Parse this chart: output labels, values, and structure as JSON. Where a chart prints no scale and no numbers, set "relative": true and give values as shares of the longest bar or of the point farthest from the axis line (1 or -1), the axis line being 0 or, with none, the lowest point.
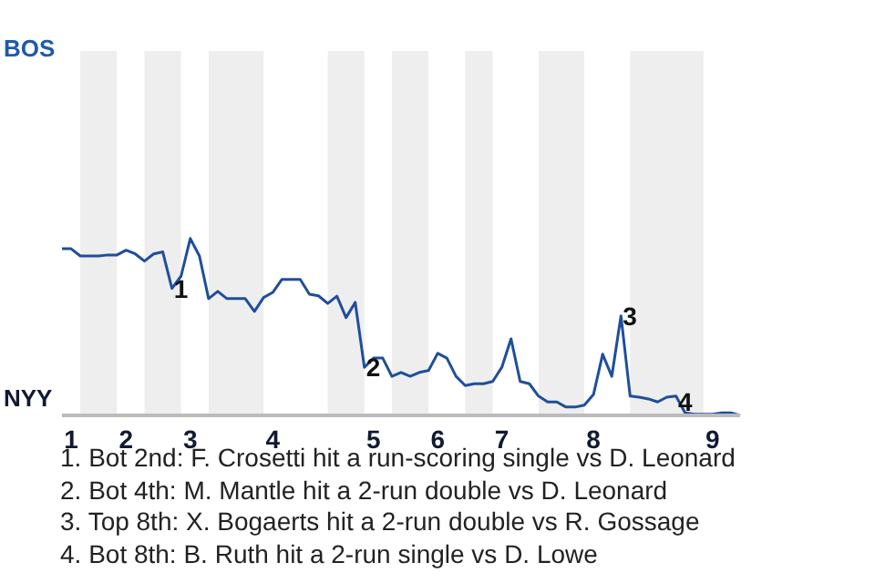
{
  "chart_data": {
    "type": "line",
    "relative": true,
    "categories": [
      null,
      "1",
      null,
      null,
      null,
      null,
      null,
      "2",
      null,
      null,
      null,
      null,
      null,
      null,
      "3",
      null,
      null,
      null,
      null,
      null,
      null,
      null,
      null,
      "4",
      null,
      null,
      null,
      null,
      null,
      null,
      null,
      null,
      null,
      null,
      "5",
      null,
      null,
      null,
      null,
      null,
      null,
      "6",
      null,
      null,
      null,
      null,
      null,
      null,
      "7",
      null,
      null,
      null,
      null,
      null,
      null,
      null,
      null,
      null,
      "8",
      null,
      null,
      null,
      null,
      null,
      null,
      null,
      null,
      null,
      null,
      null,
      null,
      "9",
      null,
      null,
      null
    ],
    "series": [
      {
        "color": "#1f4e9c",
        "values": [
          0.942,
          0.942,
          0.901,
          0.901,
          0.901,
          0.907,
          0.907,
          0.934,
          0.913,
          0.872,
          0.913,
          0.924,
          0.718,
          0.788,
          1,
          0.901,
          0.66,
          0.701,
          0.66,
          0.66,
          0.66,
          0.588,
          0.666,
          0.695,
          0.769,
          0.769,
          0.769,
          0.685,
          0.676,
          0.633,
          0.674,
          0.553,
          0.639,
          0.272,
          0.324,
          0.324,
          0.221,
          0.243,
          0.221,
          0.243,
          0.254,
          0.351,
          0.324,
          0.221,
          0.169,
          0.179,
          0.179,
          0.192,
          0.272,
          0.433,
          0.192,
          0.179,
          0.109,
          0.076,
          0.076,
          0.047,
          0.047,
          0.058,
          0.118,
          0.346,
          0.221,
          0.563,
          0.109,
          0.103,
          0.093,
          0.076,
          0.103,
          0.109,
          0.014,
          0.006,
          0.006,
          0.006,
          0.014,
          0.014,
          0
        ]
      }
    ],
    "annotations": [
      "BOS",
      "NYY",
      {
        "text": "1",
        "y": 0.718
      },
      {
        "text": "2",
        "y": 0.272
      },
      {
        "text": "3",
        "y": 0.563
      },
      {
        "text": "4",
        "y": 0.014
      },
      "1. Bot 2nd: F. Crosetti hit a run-scoring single vs D. Leonard",
      "2. Bot 4th: M. Mantle hit a 2-run double vs D. Leonard",
      "3. Top 8th: X. Bogaerts hit a 2-run double vs R. Gossage",
      "4. Bot 8th: B. Ruth hit a 2-run single vs D. Lowe"
    ]
  }
}
